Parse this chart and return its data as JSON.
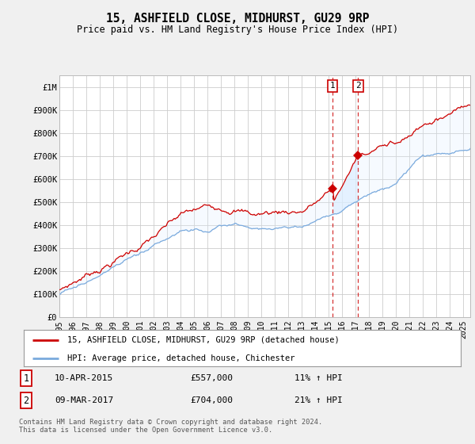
{
  "title": "15, ASHFIELD CLOSE, MIDHURST, GU29 9RP",
  "subtitle": "Price paid vs. HM Land Registry's House Price Index (HPI)",
  "ylabel_ticks": [
    "£0",
    "£100K",
    "£200K",
    "£300K",
    "£400K",
    "£500K",
    "£600K",
    "£700K",
    "£800K",
    "£900K",
    "£1M"
  ],
  "ytick_vals": [
    0,
    100000,
    200000,
    300000,
    400000,
    500000,
    600000,
    700000,
    800000,
    900000,
    1000000
  ],
  "ylim": [
    0,
    1050000
  ],
  "xlim_start": 1995.0,
  "xlim_end": 2025.5,
  "years_ticks": [
    1995,
    1996,
    1997,
    1998,
    1999,
    2000,
    2001,
    2002,
    2003,
    2004,
    2005,
    2006,
    2007,
    2008,
    2009,
    2010,
    2011,
    2012,
    2013,
    2014,
    2015,
    2016,
    2017,
    2018,
    2019,
    2020,
    2021,
    2022,
    2023,
    2024,
    2025
  ],
  "sale1_x": 2015.27,
  "sale1_y": 557000,
  "sale2_x": 2017.18,
  "sale2_y": 704000,
  "sale1_label": "10-APR-2015",
  "sale1_price": "£557,000",
  "sale1_hpi": "11% ↑ HPI",
  "sale2_label": "09-MAR-2017",
  "sale2_price": "£704,000",
  "sale2_hpi": "21% ↑ HPI",
  "legend_line1": "15, ASHFIELD CLOSE, MIDHURST, GU29 9RP (detached house)",
  "legend_line2": "HPI: Average price, detached house, Chichester",
  "footnote": "Contains HM Land Registry data © Crown copyright and database right 2024.\nThis data is licensed under the Open Government Licence v3.0.",
  "line_red": "#cc0000",
  "line_blue": "#7aaadd",
  "fill_blue": "#ddeeff",
  "bg_color": "#f0f0f0",
  "plot_bg": "#ffffff",
  "grid_color": "#cccccc"
}
